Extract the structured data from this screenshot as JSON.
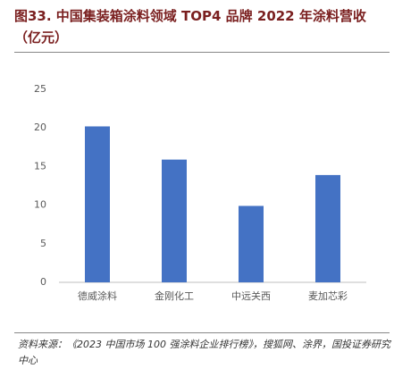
{
  "chart_data": {
    "type": "bar",
    "title": "图33. 中国集装箱涂料领域 TOP4 品牌 2022 年涂料营收（亿元）",
    "categories": [
      "德威涂料",
      "金刚化工",
      "中远关西",
      "麦加芯彩"
    ],
    "values": [
      20.2,
      15.9,
      9.9,
      13.9
    ],
    "color": "#4472c4",
    "ylim": [
      0,
      25
    ],
    "yticks": [
      0,
      5,
      10,
      15,
      20,
      25
    ],
    "grid": false,
    "source": "资料来源：《2023 中国市场 100 强涂料企业排行榜》，搜狐网、涂界，国投证券研究中心"
  }
}
